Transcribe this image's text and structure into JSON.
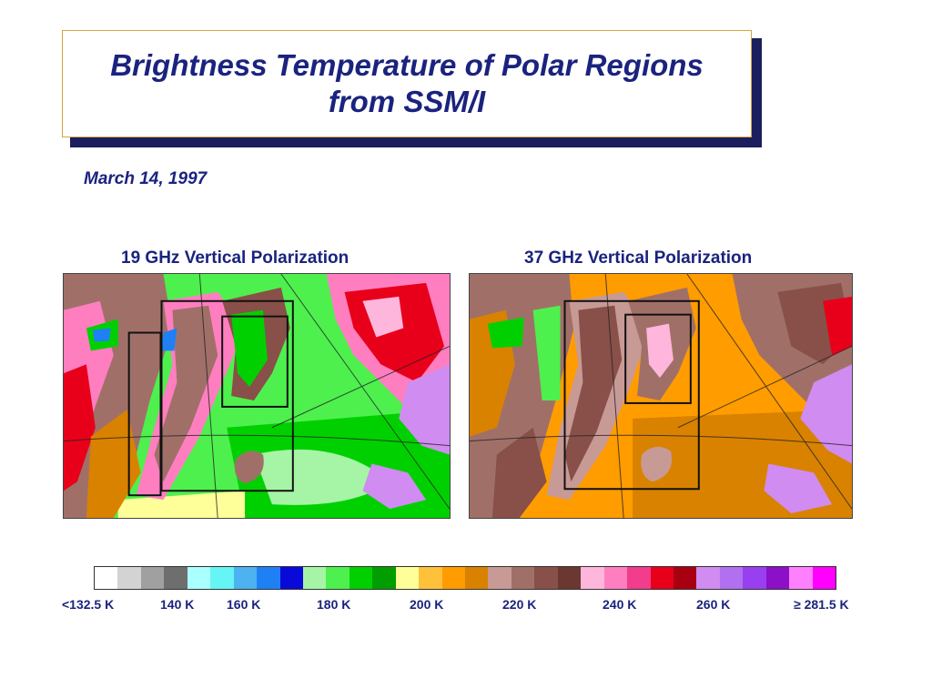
{
  "title": {
    "line1": "Brightness Temperature of Polar Regions",
    "line2": "from SSM/I"
  },
  "date": "March 14, 1997",
  "panels": [
    {
      "label": "19 GHz Vertical Polarization"
    },
    {
      "label": "37 GHz Vertical Polarization"
    }
  ],
  "colors": {
    "title_text": "#1a237e",
    "title_shadow": "#1b1f5e",
    "title_border": "#d9a441"
  },
  "color_scale": {
    "swatches": [
      "#ffffff",
      "#d3d3d3",
      "#a0a0a0",
      "#6e6e6e",
      "#aaffff",
      "#66f5f5",
      "#4cb2f0",
      "#1f80f5",
      "#0a0ad8",
      "#a6f5a6",
      "#4ef04e",
      "#00d000",
      "#009e00",
      "#ffff99",
      "#ffc03a",
      "#ff9c00",
      "#d98200",
      "#c89a96",
      "#a07068",
      "#885048",
      "#6a3830",
      "#ffb6dc",
      "#ff7ec0",
      "#f23c8c",
      "#e8001a",
      "#a80010",
      "#d08cf0",
      "#b070f0",
      "#9840f0",
      "#8c10c8",
      "#ff80ff",
      "#ff00ff"
    ],
    "ticks": [
      "<132.5 K",
      "140 K",
      "160 K",
      "180 K",
      "200 K",
      "220 K",
      "240 K",
      "260 K",
      "≥ 281.5 K"
    ]
  }
}
